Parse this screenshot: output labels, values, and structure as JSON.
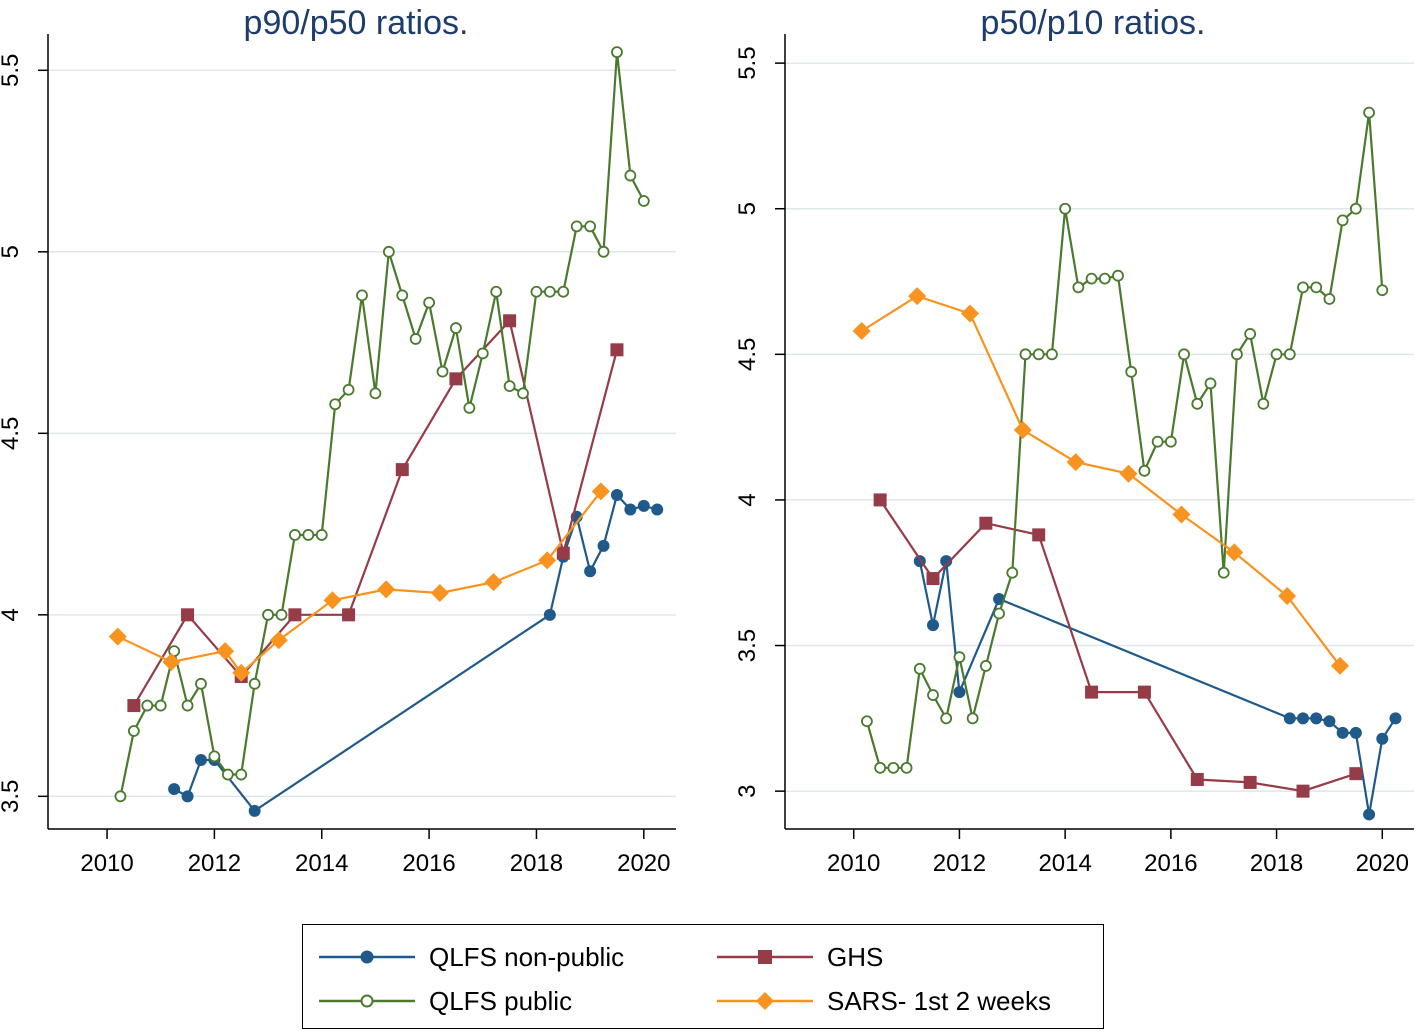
{
  "legend": {
    "qlfs_nonpublic": "QLFS non-public",
    "ghs": "GHS",
    "qlfs_public": "QLFS public",
    "sars": "SARS- 1st 2 weeks"
  },
  "colors": {
    "qlfs_nonpublic": "#1f5a8a",
    "ghs": "#953c48",
    "qlfs_public": "#4a7a2e",
    "sars": "#f7931e"
  },
  "chart_data": [
    {
      "type": "line",
      "title": "p90/p50  ratios.",
      "xlabel": "",
      "ylabel": "",
      "xlim": [
        2008.9,
        2020.6
      ],
      "ylim": [
        3.41,
        5.6
      ],
      "xticks": [
        2010,
        2012,
        2014,
        2016,
        2018,
        2020
      ],
      "yticks": [
        3.5,
        4,
        4.5,
        5,
        5.5
      ],
      "grid": true,
      "series": [
        {
          "name": "QLFS non-public",
          "marker": "circle",
          "points": [
            [
              2011.25,
              3.52
            ],
            [
              2011.5,
              3.5
            ],
            [
              2011.75,
              3.6
            ],
            [
              2012.0,
              3.6
            ],
            [
              2012.75,
              3.46
            ],
            [
              2018.25,
              4.0
            ],
            [
              2018.5,
              4.16
            ],
            [
              2018.75,
              4.27
            ],
            [
              2019.0,
              4.12
            ],
            [
              2019.25,
              4.19
            ],
            [
              2019.5,
              4.33
            ],
            [
              2019.75,
              4.29
            ],
            [
              2020.0,
              4.3
            ],
            [
              2020.25,
              4.29
            ]
          ]
        },
        {
          "name": "GHS",
          "marker": "square",
          "points": [
            [
              2010.5,
              3.75
            ],
            [
              2011.5,
              4.0
            ],
            [
              2012.5,
              3.83
            ],
            [
              2013.5,
              4.0
            ],
            [
              2014.5,
              4.0
            ],
            [
              2015.5,
              4.4
            ],
            [
              2016.5,
              4.65
            ],
            [
              2017.5,
              4.81
            ],
            [
              2018.5,
              4.17
            ],
            [
              2019.5,
              4.73
            ]
          ]
        },
        {
          "name": "QLFS public",
          "marker": "hollow-circle",
          "points": [
            [
              2010.25,
              3.5
            ],
            [
              2010.5,
              3.68
            ],
            [
              2010.75,
              3.75
            ],
            [
              2011.0,
              3.75
            ],
            [
              2011.25,
              3.9
            ],
            [
              2011.5,
              3.75
            ],
            [
              2011.75,
              3.81
            ],
            [
              2012.0,
              3.61
            ],
            [
              2012.25,
              3.56
            ],
            [
              2012.5,
              3.56
            ],
            [
              2012.75,
              3.81
            ],
            [
              2013.0,
              4.0
            ],
            [
              2013.25,
              4.0
            ],
            [
              2013.5,
              4.22
            ],
            [
              2013.75,
              4.22
            ],
            [
              2014.0,
              4.22
            ],
            [
              2014.25,
              4.58
            ],
            [
              2014.5,
              4.62
            ],
            [
              2014.75,
              4.88
            ],
            [
              2015.0,
              4.61
            ],
            [
              2015.25,
              5.0
            ],
            [
              2015.5,
              4.88
            ],
            [
              2015.75,
              4.76
            ],
            [
              2016.0,
              4.86
            ],
            [
              2016.25,
              4.67
            ],
            [
              2016.5,
              4.79
            ],
            [
              2016.75,
              4.57
            ],
            [
              2017.0,
              4.72
            ],
            [
              2017.25,
              4.89
            ],
            [
              2017.5,
              4.63
            ],
            [
              2017.75,
              4.61
            ],
            [
              2018.0,
              4.89
            ],
            [
              2018.25,
              4.89
            ],
            [
              2018.5,
              4.89
            ],
            [
              2018.75,
              5.07
            ],
            [
              2019.0,
              5.07
            ],
            [
              2019.25,
              5.0
            ],
            [
              2019.5,
              5.55
            ],
            [
              2019.75,
              5.21
            ],
            [
              2020.0,
              5.14
            ]
          ]
        },
        {
          "name": "SARS- 1st 2 weeks",
          "marker": "diamond",
          "points": [
            [
              2010.2,
              3.94
            ],
            [
              2011.2,
              3.87
            ],
            [
              2012.2,
              3.9
            ],
            [
              2012.5,
              3.84
            ],
            [
              2013.2,
              3.93
            ],
            [
              2014.2,
              4.04
            ],
            [
              2015.2,
              4.07
            ],
            [
              2016.2,
              4.06
            ],
            [
              2017.2,
              4.09
            ],
            [
              2018.2,
              4.15
            ],
            [
              2019.2,
              4.34
            ]
          ]
        }
      ]
    },
    {
      "type": "line",
      "title": "p50/p10  ratios.",
      "xlabel": "",
      "ylabel": "",
      "xlim": [
        2008.7,
        2020.6
      ],
      "ylim": [
        2.87,
        5.6
      ],
      "xticks": [
        2010,
        2012,
        2014,
        2016,
        2018,
        2020
      ],
      "yticks": [
        3,
        3.5,
        4,
        4.5,
        5,
        5.5
      ],
      "grid": true,
      "series": [
        {
          "name": "QLFS non-public",
          "marker": "circle",
          "points": [
            [
              2011.25,
              3.79
            ],
            [
              2011.5,
              3.57
            ],
            [
              2011.75,
              3.79
            ],
            [
              2012.0,
              3.34
            ],
            [
              2012.75,
              3.66
            ],
            [
              2018.25,
              3.25
            ],
            [
              2018.5,
              3.25
            ],
            [
              2018.75,
              3.25
            ],
            [
              2019.0,
              3.24
            ],
            [
              2019.25,
              3.2
            ],
            [
              2019.5,
              3.2
            ],
            [
              2019.75,
              2.92
            ],
            [
              2020.0,
              3.18
            ],
            [
              2020.25,
              3.25
            ]
          ]
        },
        {
          "name": "GHS",
          "marker": "square",
          "points": [
            [
              2010.5,
              4.0
            ],
            [
              2011.5,
              3.73
            ],
            [
              2012.5,
              3.92
            ],
            [
              2013.5,
              3.88
            ],
            [
              2014.5,
              3.34
            ],
            [
              2015.5,
              3.34
            ],
            [
              2016.5,
              3.04
            ],
            [
              2017.5,
              3.03
            ],
            [
              2018.5,
              3.0
            ],
            [
              2019.5,
              3.06
            ]
          ]
        },
        {
          "name": "QLFS public",
          "marker": "hollow-circle",
          "points": [
            [
              2010.25,
              3.24
            ],
            [
              2010.5,
              3.08
            ],
            [
              2010.75,
              3.08
            ],
            [
              2011.0,
              3.08
            ],
            [
              2011.25,
              3.42
            ],
            [
              2011.5,
              3.33
            ],
            [
              2011.75,
              3.25
            ],
            [
              2012.0,
              3.46
            ],
            [
              2012.25,
              3.25
            ],
            [
              2012.5,
              3.43
            ],
            [
              2012.75,
              3.61
            ],
            [
              2013.0,
              3.75
            ],
            [
              2013.25,
              4.5
            ],
            [
              2013.5,
              4.5
            ],
            [
              2013.75,
              4.5
            ],
            [
              2014.0,
              5.0
            ],
            [
              2014.25,
              4.73
            ],
            [
              2014.5,
              4.76
            ],
            [
              2014.75,
              4.76
            ],
            [
              2015.0,
              4.77
            ],
            [
              2015.25,
              4.44
            ],
            [
              2015.5,
              4.1
            ],
            [
              2015.75,
              4.2
            ],
            [
              2016.0,
              4.2
            ],
            [
              2016.25,
              4.5
            ],
            [
              2016.5,
              4.33
            ],
            [
              2016.75,
              4.4
            ],
            [
              2017.0,
              3.75
            ],
            [
              2017.25,
              4.5
            ],
            [
              2017.5,
              4.57
            ],
            [
              2017.75,
              4.33
            ],
            [
              2018.0,
              4.5
            ],
            [
              2018.25,
              4.5
            ],
            [
              2018.5,
              4.73
            ],
            [
              2018.75,
              4.73
            ],
            [
              2019.0,
              4.69
            ],
            [
              2019.25,
              4.96
            ],
            [
              2019.5,
              5.0
            ],
            [
              2019.75,
              5.33
            ],
            [
              2020.0,
              4.72
            ]
          ]
        },
        {
          "name": "SARS- 1st 2 weeks",
          "marker": "diamond",
          "points": [
            [
              2010.15,
              4.58
            ],
            [
              2011.2,
              4.7
            ],
            [
              2012.2,
              4.64
            ],
            [
              2013.2,
              4.24
            ],
            [
              2014.2,
              4.13
            ],
            [
              2015.2,
              4.09
            ],
            [
              2016.2,
              3.95
            ],
            [
              2017.2,
              3.82
            ],
            [
              2018.2,
              3.67
            ],
            [
              2019.2,
              3.43
            ]
          ]
        }
      ]
    }
  ]
}
